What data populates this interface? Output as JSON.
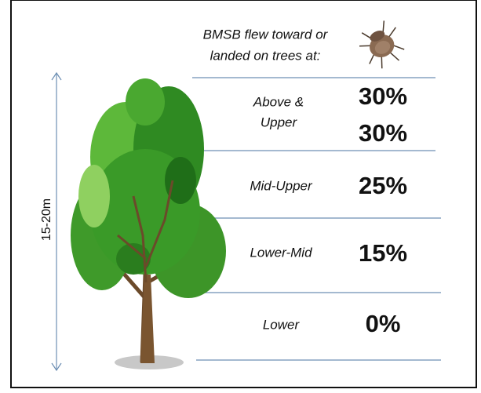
{
  "header": {
    "lines": [
      "BMSB flew toward or",
      "landed on trees at:"
    ]
  },
  "height_label": "15-20m",
  "rows": [
    {
      "label": [
        "Above &",
        "Upper"
      ],
      "values": [
        "30%",
        "30%"
      ]
    },
    {
      "label": [
        "Mid-Upper"
      ],
      "values": [
        "25%"
      ]
    },
    {
      "label": [
        "Lower-Mid"
      ],
      "values": [
        "15%"
      ]
    },
    {
      "label": [
        "Lower"
      ],
      "values": [
        "0%"
      ]
    }
  ]
}
